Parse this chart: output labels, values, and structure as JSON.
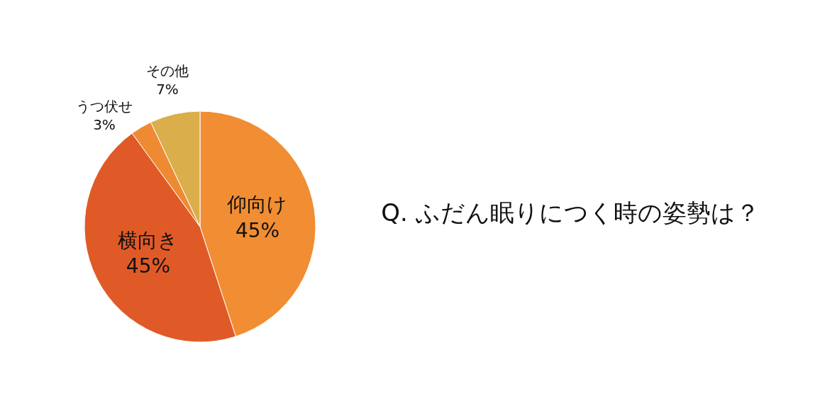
{
  "chart_data": {
    "type": "pie",
    "title": "Q. ふだん眠りにつく時の姿勢は？",
    "categories": [
      "仰向け",
      "横向き",
      "うつ伏せ",
      "その他"
    ],
    "values": [
      45,
      45,
      3,
      7
    ],
    "value_labels": [
      "45%",
      "45%",
      "3%",
      "7%"
    ],
    "colors": [
      "#f18d32",
      "#e05a28",
      "#ee8b32",
      "#d9ae4b"
    ]
  }
}
